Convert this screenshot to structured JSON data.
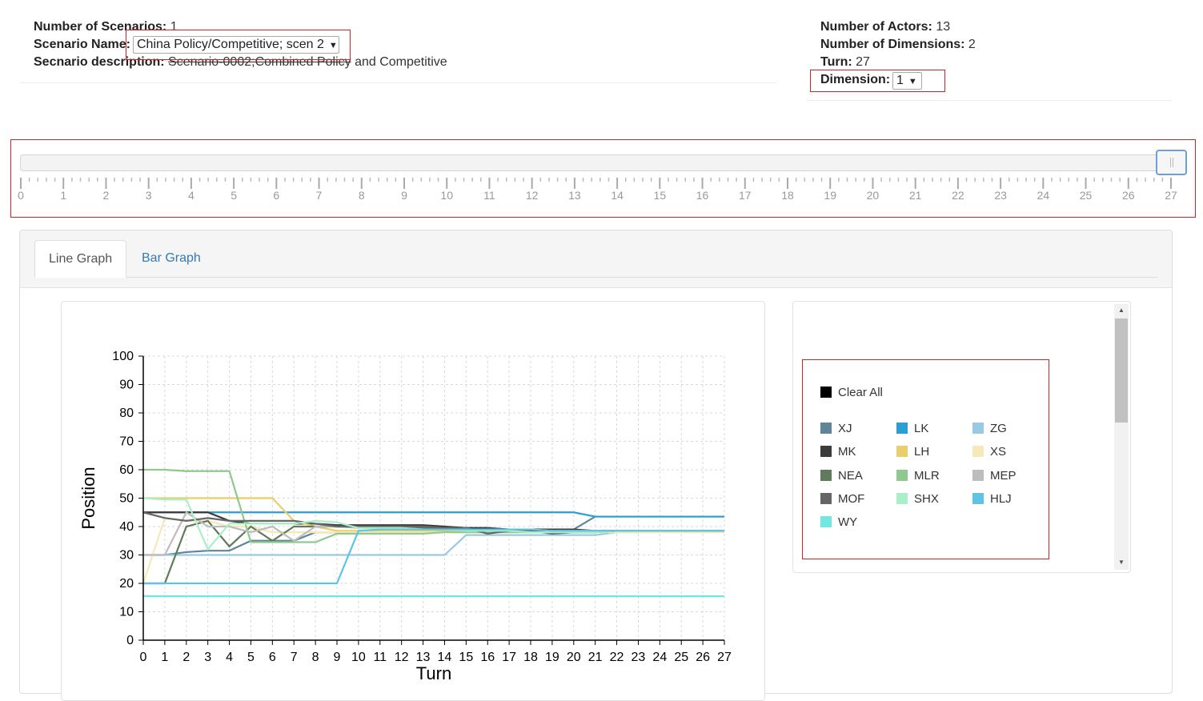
{
  "scenario_info": {
    "num_scenarios_label": "Number of Scenarios:",
    "num_scenarios_value": "1",
    "scenario_name_label": "Scenario Name:",
    "scenario_name_value": "China Policy/Competitive; scen 2",
    "description_label": "Secnario description:",
    "description_value_struck": "Scenario-0002;Combined Policy",
    "description_value_rest": " and Competitive"
  },
  "model_info": {
    "num_actors_label": "Number of Actors:",
    "num_actors_value": "13",
    "num_dimensions_label": "Number of Dimensions:",
    "num_dimensions_value": "2",
    "turn_label": "Turn:",
    "turn_value": "27",
    "dimension_label": "Dimension:",
    "dimension_value": "1"
  },
  "turn_slider": {
    "min": 0,
    "max": 27,
    "value": 27,
    "tick_labels": [
      "0",
      "1",
      "2",
      "3",
      "4",
      "5",
      "6",
      "7",
      "8",
      "9",
      "10",
      "11",
      "12",
      "13",
      "14",
      "15",
      "16",
      "17",
      "18",
      "19",
      "20",
      "21",
      "22",
      "23",
      "24",
      "25",
      "26",
      "27"
    ]
  },
  "tabs": [
    {
      "label": "Line Graph",
      "active": true
    },
    {
      "label": "Bar Graph",
      "active": false
    }
  ],
  "legend": {
    "clear_all_label": "Clear All",
    "clear_all_color": "#000000",
    "items": [
      {
        "label": "XJ",
        "color": "#5f8599"
      },
      {
        "label": "LK",
        "color": "#2b9fd3"
      },
      {
        "label": "ZG",
        "color": "#9ac9e3"
      },
      {
        "label": "MK",
        "color": "#3b3b3b"
      },
      {
        "label": "LH",
        "color": "#e8cf6c"
      },
      {
        "label": "XS",
        "color": "#f5e9b8"
      },
      {
        "label": "NEA",
        "color": "#607a5b"
      },
      {
        "label": "MLR",
        "color": "#8fc98f"
      },
      {
        "label": "MEP",
        "color": "#bdbdbd"
      },
      {
        "label": "MOF",
        "color": "#666666"
      },
      {
        "label": "SHX",
        "color": "#a9efc7"
      },
      {
        "label": "HLJ",
        "color": "#5fc3e6"
      },
      {
        "label": "WY",
        "color": "#6fe7e3"
      }
    ]
  },
  "chart_data": {
    "type": "line",
    "title": "",
    "xlabel": "Turn",
    "ylabel": "Position",
    "xlim": [
      0,
      27
    ],
    "ylim": [
      0,
      100
    ],
    "x_ticks": [
      "0",
      "1",
      "2",
      "3",
      "4",
      "5",
      "6",
      "7",
      "8",
      "9",
      "10",
      "11",
      "12",
      "13",
      "14",
      "15",
      "16",
      "17",
      "18",
      "19",
      "20",
      "21",
      "22",
      "23",
      "24",
      "25",
      "26",
      "27"
    ],
    "y_ticks": [
      "0",
      "10",
      "20",
      "30",
      "40",
      "50",
      "60",
      "70",
      "80",
      "90",
      "100"
    ],
    "grid": true,
    "x": [
      0,
      1,
      2,
      3,
      4,
      5,
      6,
      7,
      8,
      9,
      10,
      11,
      12,
      13,
      14,
      15,
      16,
      17,
      18,
      19,
      20,
      21,
      22,
      23,
      24,
      25,
      26,
      27
    ],
    "series": [
      {
        "name": "XJ",
        "color": "#5f8599",
        "values": [
          30,
          30,
          31,
          31.5,
          31.5,
          35,
          35,
          35,
          38,
          38,
          38,
          39,
          39,
          39,
          39,
          39,
          39,
          39,
          39,
          39,
          39,
          43.5,
          43.5,
          43.5,
          43.5,
          43.5,
          43.5,
          43.5
        ]
      },
      {
        "name": "LK",
        "color": "#2b9fd3",
        "values": [
          45,
          45,
          45,
          45,
          45,
          45,
          45,
          45,
          45,
          45,
          45,
          45,
          45,
          45,
          45,
          45,
          45,
          45,
          45,
          45,
          45,
          43.5,
          43.5,
          43.5,
          43.5,
          43.5,
          43.5,
          43.5
        ]
      },
      {
        "name": "ZG",
        "color": "#9ac9e3",
        "values": [
          30,
          30,
          30,
          30,
          30,
          30,
          30,
          30,
          30,
          30,
          30,
          30,
          30,
          30,
          30,
          37,
          37,
          37,
          37,
          37,
          37,
          37,
          38,
          38,
          38.5,
          38.5,
          38.5,
          38.5
        ]
      },
      {
        "name": "MK",
        "color": "#3b3b3b",
        "values": [
          45,
          45,
          45,
          45,
          42,
          41,
          41,
          41,
          41,
          40.5,
          40.5,
          40.5,
          40.5,
          40.5,
          40,
          39.5,
          39.5,
          39,
          39,
          39,
          39,
          38.5,
          38.5,
          38.5,
          38.5,
          38.5,
          38.5,
          38.5
        ]
      },
      {
        "name": "LH",
        "color": "#e8cf6c",
        "values": [
          50,
          50,
          50,
          50,
          50,
          50,
          50,
          42,
          40,
          38.5,
          38.5,
          38.5,
          38.5,
          38.5,
          38.5,
          38.5,
          38.5,
          38.5,
          38.5,
          38.5,
          38.5,
          38.5,
          38.5,
          38.5,
          38.5,
          38.5,
          38.5,
          38.5
        ]
      },
      {
        "name": "XS",
        "color": "#f5e9b8",
        "values": [
          20,
          43,
          42,
          42,
          40,
          40,
          38,
          38,
          38,
          38,
          38,
          38,
          38,
          38,
          38,
          38,
          38,
          38,
          38,
          38,
          38,
          38,
          38,
          38,
          38,
          38,
          38,
          38
        ]
      },
      {
        "name": "NEA",
        "color": "#607a5b",
        "values": [
          20,
          20,
          40,
          42,
          33,
          40,
          35,
          40,
          40,
          40,
          40,
          40,
          39.5,
          39.5,
          39,
          39,
          39,
          39,
          38.5,
          38.5,
          38.5,
          38.5,
          38.5,
          38.5,
          38.5,
          38.5,
          38.5,
          38.5
        ]
      },
      {
        "name": "MLR",
        "color": "#8fc98f",
        "values": [
          60,
          60,
          59.5,
          59.5,
          59.5,
          34.5,
          34.5,
          34.5,
          34.5,
          37.5,
          37.5,
          37.5,
          37.5,
          37.5,
          38,
          38,
          38,
          38,
          38,
          38,
          38,
          38,
          38.5,
          38.5,
          38.5,
          38.5,
          38.5,
          38.5
        ]
      },
      {
        "name": "MEP",
        "color": "#bdbdbd",
        "values": [
          30,
          30,
          45,
          40,
          40,
          38,
          40,
          35,
          40,
          40,
          39.5,
          39.5,
          39.5,
          39,
          39,
          39,
          39,
          39,
          39,
          38.5,
          38.5,
          38.5,
          38.5,
          38.5,
          38.5,
          38.5,
          38.5,
          38.5
        ]
      },
      {
        "name": "MOF",
        "color": "#666666",
        "values": [
          45,
          43,
          42,
          43,
          42,
          42,
          42,
          42,
          41,
          40,
          40,
          40,
          40,
          40,
          39.5,
          39.5,
          37.5,
          38.5,
          38.5,
          37.5,
          38,
          38,
          38.5,
          38.5,
          38.5,
          38.5,
          38.5,
          38.5
        ]
      },
      {
        "name": "SHX",
        "color": "#a9efc7",
        "values": [
          50,
          49.5,
          49.5,
          32,
          41,
          41,
          41,
          41,
          42,
          41.5,
          39.5,
          39.5,
          39.5,
          39,
          39,
          38.5,
          38.5,
          38.5,
          38,
          38,
          38,
          38,
          38.5,
          38.5,
          38.5,
          38.5,
          38.5,
          38.5
        ]
      },
      {
        "name": "HLJ",
        "color": "#5fc3e6",
        "values": [
          20,
          20,
          20,
          20,
          20,
          20,
          20,
          20,
          20,
          20,
          38.5,
          39,
          39,
          39,
          39,
          39,
          39,
          39,
          39,
          38.5,
          38.5,
          38.5,
          38.5,
          38.5,
          38.5,
          38.5,
          38.5,
          38.5
        ]
      },
      {
        "name": "WY",
        "color": "#6fe7e3",
        "values": [
          15.5,
          15.5,
          15.5,
          15.5,
          15.5,
          15.5,
          15.5,
          15.5,
          15.5,
          15.5,
          15.5,
          15.5,
          15.5,
          15.5,
          15.5,
          15.5,
          15.5,
          15.5,
          15.5,
          15.5,
          15.5,
          15.5,
          15.5,
          15.5,
          15.5,
          15.5,
          15.5,
          15.5
        ]
      }
    ]
  }
}
